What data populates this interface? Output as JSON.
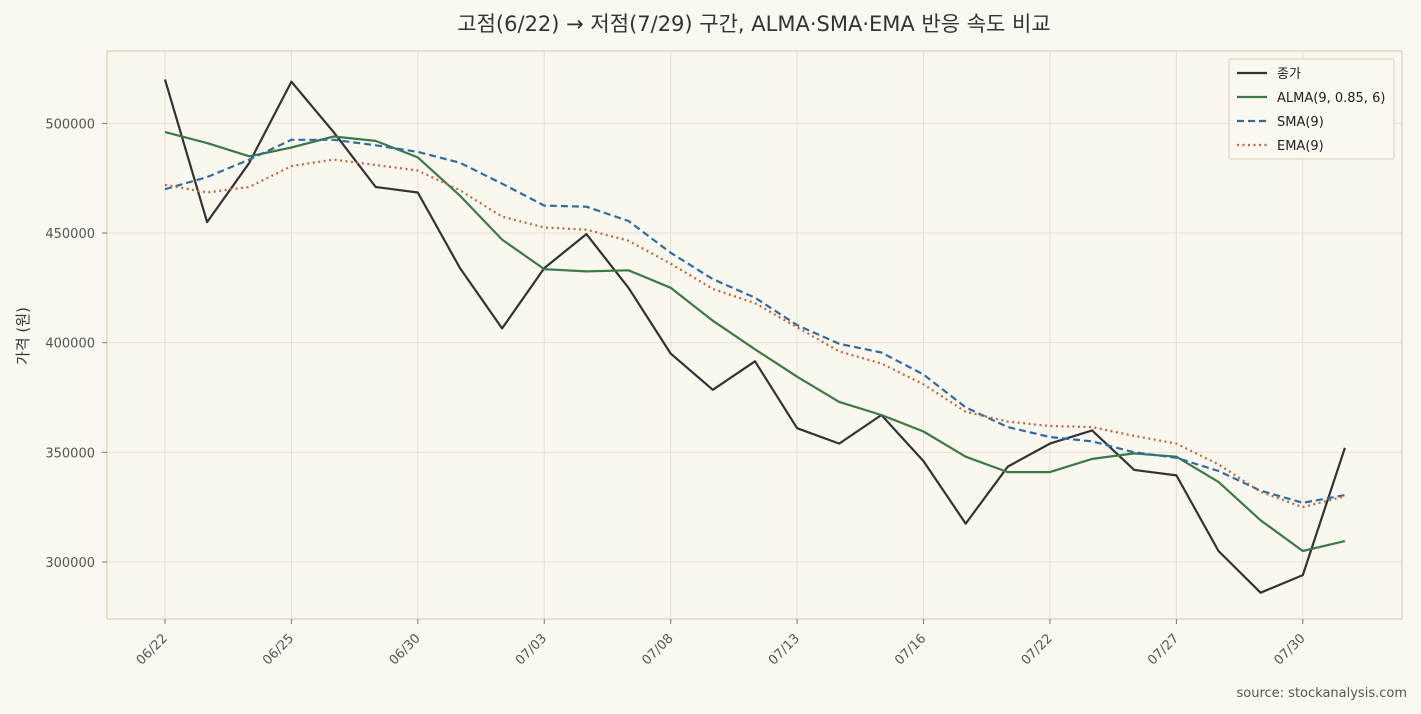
{
  "chart_data": {
    "type": "line",
    "title": "고점(6/22) → 저점(7/29) 구간, ALMA·SMA·EMA 반응 속도 비교",
    "ylabel": "가격 (원)",
    "xlabel": "",
    "source": "source: stockanalysis.com",
    "ylim": [
      274000,
      533000
    ],
    "y_ticks": [
      300000,
      350000,
      400000,
      450000,
      500000
    ],
    "y_tick_labels": [
      "300000",
      "350000",
      "400000",
      "450000",
      "500000"
    ],
    "x_ticks": [
      {
        "index": 0,
        "label": "06/22"
      },
      {
        "index": 3,
        "label": "06/25"
      },
      {
        "index": 6,
        "label": "06/30"
      },
      {
        "index": 9,
        "label": "07/03"
      },
      {
        "index": 12,
        "label": "07/08"
      },
      {
        "index": 15,
        "label": "07/13"
      },
      {
        "index": 18,
        "label": "07/16"
      },
      {
        "index": 21,
        "label": "07/22"
      },
      {
        "index": 24,
        "label": "07/27"
      },
      {
        "index": 27,
        "label": "07/30"
      }
    ],
    "grid": true,
    "legend_position": "top-right",
    "series": [
      {
        "name": "종가",
        "color": "#333333",
        "style": "solid",
        "values": [
          520000,
          455000,
          482000,
          519000,
          496000,
          471000,
          468500,
          434000,
          406500,
          434000,
          449500,
          425000,
          395000,
          378500,
          391500,
          361000,
          354000,
          367000,
          346000,
          317500,
          343500,
          354000,
          360000,
          342000,
          339500,
          305000,
          286000,
          294000,
          352000
        ]
      },
      {
        "name": "ALMA(9, 0.85, 6)",
        "color": "#3a7a4a",
        "style": "solid",
        "values": [
          496000,
          491000,
          485000,
          489000,
          494000,
          492000,
          484500,
          467000,
          447000,
          433500,
          432500,
          433000,
          425000,
          410000,
          397000,
          384500,
          373000,
          367000,
          359500,
          348000,
          341000,
          341000,
          347000,
          349500,
          348000,
          336500,
          319000,
          305000,
          309500
        ]
      },
      {
        "name": "SMA(9)",
        "color": "#2e6da4",
        "style": "dashed",
        "values": [
          470000,
          475500,
          483500,
          492500,
          492500,
          490000,
          487000,
          482000,
          472500,
          462500,
          462000,
          455500,
          441000,
          429000,
          420500,
          408000,
          399500,
          395500,
          385500,
          370500,
          361500,
          357000,
          355000,
          350000,
          347500,
          341500,
          332500,
          327000,
          330500
        ]
      },
      {
        "name": "EMA(9)",
        "color": "#c0673a",
        "style": "dotted",
        "values": [
          472000,
          468500,
          471000,
          480500,
          483500,
          481000,
          478500,
          469500,
          457500,
          452500,
          451500,
          446500,
          436000,
          424500,
          418000,
          407000,
          396000,
          390500,
          381000,
          368500,
          364000,
          362000,
          361500,
          357500,
          354000,
          344500,
          332000,
          325000,
          330000
        ]
      }
    ]
  }
}
